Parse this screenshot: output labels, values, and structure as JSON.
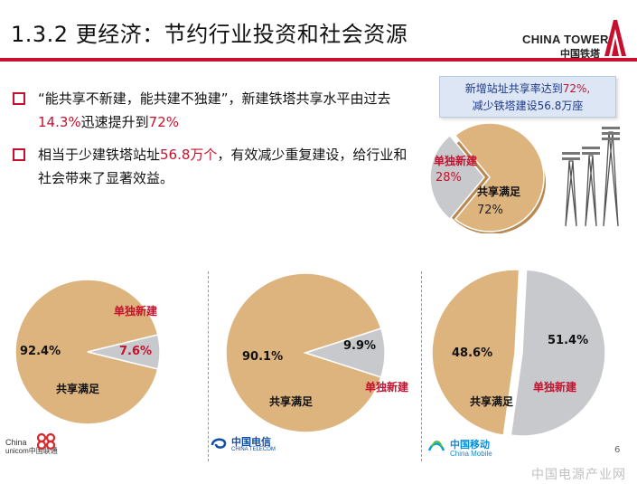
{
  "header": {
    "title": "1.3.2 更经济：节约行业投资和社会资源",
    "brand_en": "CHINA TOWER",
    "brand_cn": "中国铁塔"
  },
  "bullets": [
    {
      "before": "“能共享不新建，能共建不独建”，新建铁塔共享水平由过去",
      "hl1": "14.3%",
      "mid": "迅速提升到",
      "hl2": "72%",
      "after": ""
    },
    {
      "before": "相当于少建铁塔站址",
      "hl1": "56.8万个",
      "mid": "，有效减少重复建设，给行业和社会带来了显著效益。",
      "hl2": "",
      "after": ""
    }
  ],
  "callout": {
    "line1_prefix": "新增站址共享率达到",
    "line1_value": "72%,",
    "line2": "减少铁塔建设56.8万座"
  },
  "chart_data": [
    {
      "type": "pie",
      "categories": [
        "单独新建",
        "共享满足"
      ],
      "values": [
        28,
        72
      ],
      "labels": [
        "28%",
        "72%"
      ],
      "colors": [
        "#c8c9cc",
        "#ddb47e"
      ]
    },
    {
      "type": "pie",
      "categories": [
        "共享满足",
        "单独新建"
      ],
      "values": [
        92.4,
        7.6
      ],
      "labels": [
        "92.4%",
        "7.6%"
      ],
      "colors": [
        "#ddb47e",
        "#c8c9cc"
      ]
    },
    {
      "type": "pie",
      "categories": [
        "共享满足",
        "单独新建"
      ],
      "values": [
        90.1,
        9.9
      ],
      "labels": [
        "90.1%",
        "9.9%"
      ],
      "colors": [
        "#ddb47e",
        "#c8c9cc"
      ]
    },
    {
      "type": "pie",
      "categories": [
        "共享满足",
        "单独新建"
      ],
      "values": [
        48.6,
        51.4
      ],
      "labels": [
        "48.6%",
        "51.4%"
      ],
      "colors": [
        "#ddb47e",
        "#c8c9cc"
      ]
    }
  ],
  "logos": {
    "unicom_en1": "China",
    "unicom_en2": "unicom中国联通",
    "telecom_cn": "中国电信",
    "telecom_en": "CHINA TELECOM",
    "mobile_cn": "中国移动",
    "mobile_en": "China Mobile"
  },
  "page_number": "6",
  "watermark": "中国电源产业网",
  "icons": [
    "tower-icon",
    "china-tower-logo-icon",
    "unicom-knot-icon",
    "telecom-swirl-icon",
    "mobile-wave-icon"
  ]
}
